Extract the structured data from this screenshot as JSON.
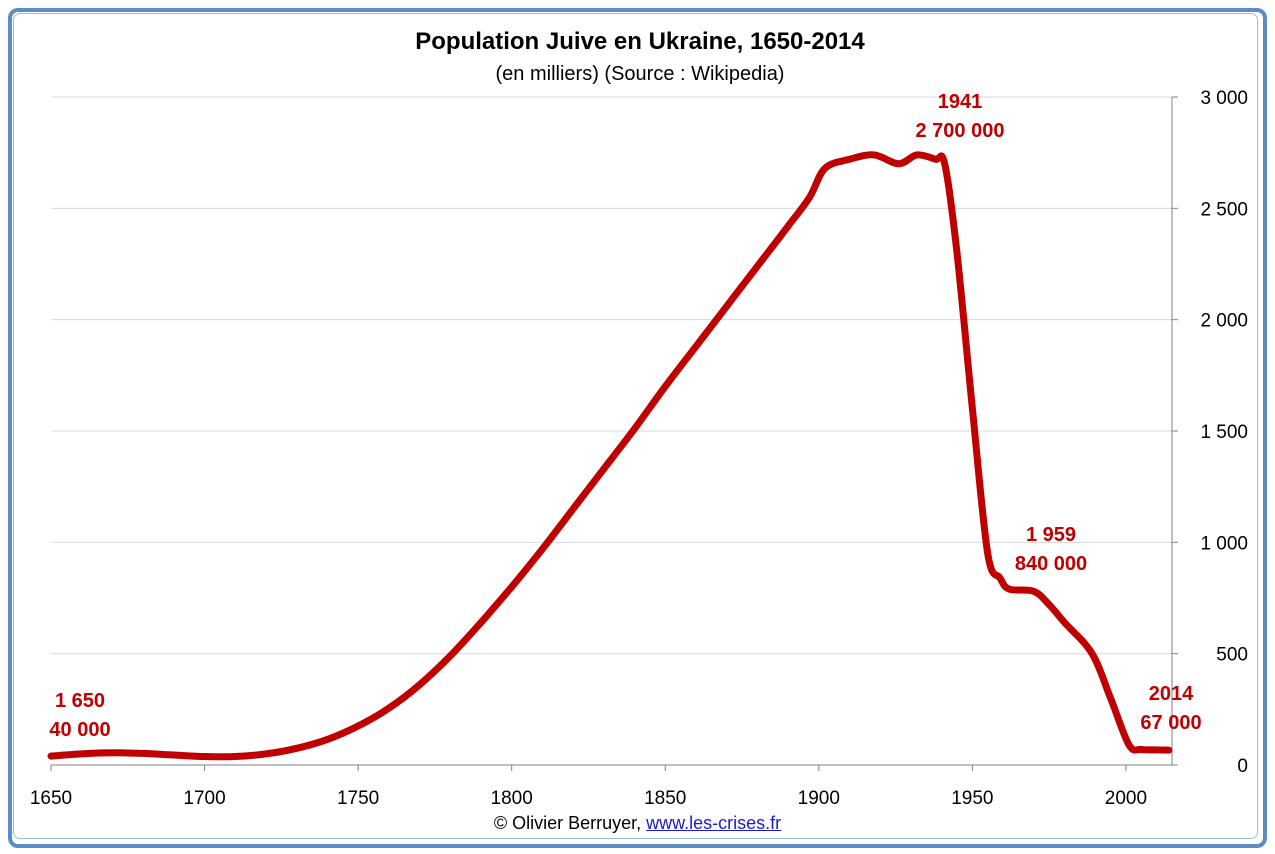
{
  "chart_data": {
    "type": "line",
    "title": "Population Juive en Ukraine, 1650-2014",
    "subtitle": "(en milliers) (Source : Wikipedia)",
    "xlim": [
      1650,
      2015
    ],
    "ylim": [
      0,
      3000
    ],
    "x_ticks": [
      "1650",
      "1700",
      "1750",
      "1800",
      "1850",
      "1900",
      "1950",
      "2000"
    ],
    "y_ticks": [
      "0",
      "500",
      "1 000",
      "1 500",
      "2 000",
      "2 500",
      "3 000"
    ],
    "y_axis_side": "right",
    "grid": true,
    "line_color": "#c00000",
    "series": [
      {
        "x": [
          1650,
          1660,
          1670,
          1680,
          1690,
          1700,
          1710,
          1720,
          1730,
          1740,
          1750,
          1760,
          1770,
          1780,
          1790,
          1800,
          1810,
          1820,
          1830,
          1840,
          1850,
          1860,
          1870,
          1880,
          1890,
          1897,
          1902,
          1910,
          1918,
          1926,
          1932,
          1938,
          1941,
          1945,
          1950,
          1955,
          1959,
          1962,
          1970,
          1975,
          1980,
          1989,
          1995,
          2001,
          2005,
          2010,
          2014
        ],
        "y": [
          40,
          50,
          55,
          52,
          45,
          38,
          38,
          50,
          75,
          115,
          175,
          255,
          360,
          490,
          640,
          800,
          970,
          1150,
          1330,
          1510,
          1700,
          1880,
          2060,
          2240,
          2420,
          2550,
          2680,
          2720,
          2740,
          2700,
          2740,
          2720,
          2700,
          2300,
          1600,
          950,
          840,
          790,
          780,
          720,
          640,
          500,
          300,
          90,
          70,
          68,
          67
        ]
      }
    ],
    "annotations": [
      {
        "year": "1 650",
        "value": "40 000"
      },
      {
        "year": "1941",
        "value": "2 700 000"
      },
      {
        "year": "1 959",
        "value": "840 000"
      },
      {
        "year": "2014",
        "value": "67 000"
      }
    ]
  },
  "credit": {
    "author": "© Olivier Berruyer,",
    "link": "www.les-crises.fr"
  }
}
